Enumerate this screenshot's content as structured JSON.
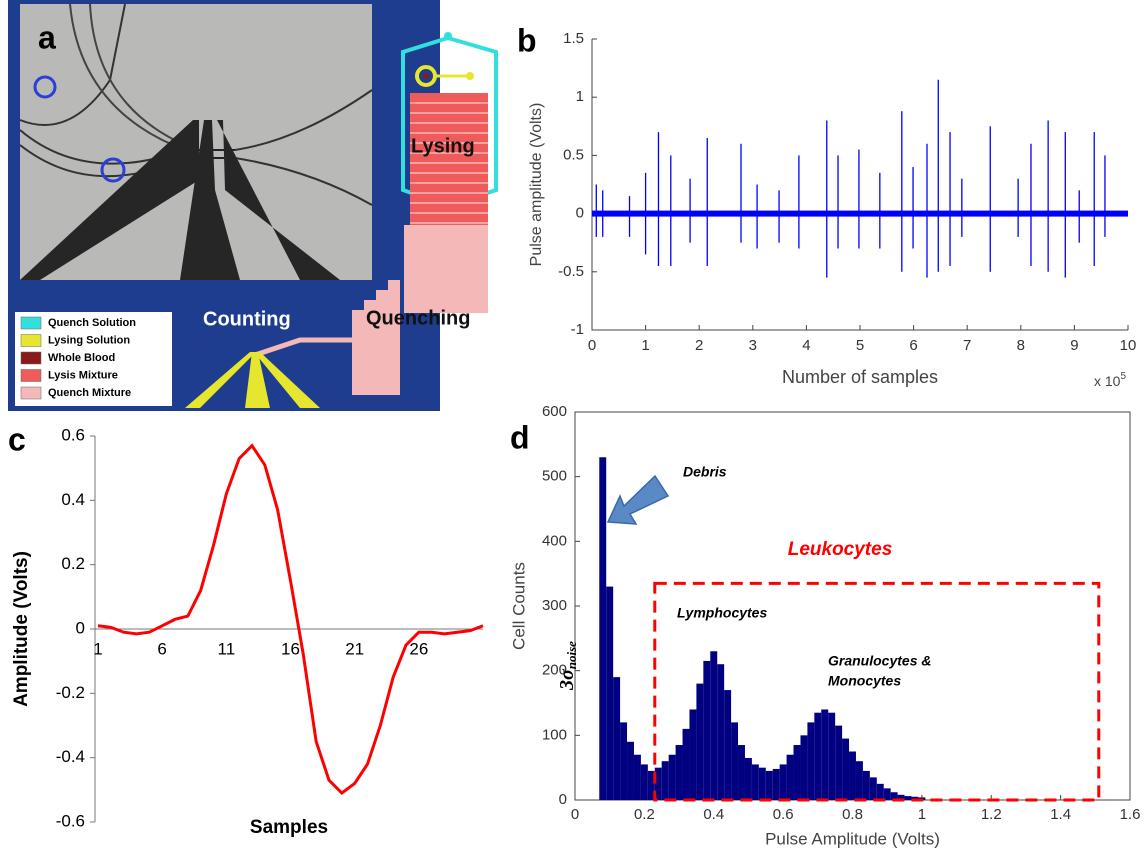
{
  "panel_a": {
    "label": "a",
    "labels": {
      "lysing": "Lysing",
      "quenching": "Quenching",
      "counting": "Counting"
    },
    "legend": [
      {
        "name": "Quench Solution",
        "color": "#33dede"
      },
      {
        "name": "Lysing Solution",
        "color": "#e6e62e"
      },
      {
        "name": "Whole Blood",
        "color": "#8b1a1a"
      },
      {
        "name": "Lysis Mixture",
        "color": "#ef5a5a"
      },
      {
        "name": "Quench Mixture",
        "color": "#f5b8b8"
      }
    ]
  },
  "chart_data": [
    {
      "type": "stem",
      "label": "b",
      "x_label": "Number of samples",
      "y_label": "Pulse amplitude (Volts)",
      "x_multiplier": {
        "base": "x 10",
        "exponent": "5"
      },
      "xlim": [
        0,
        10
      ],
      "xticks": [
        0,
        1,
        2,
        3,
        4,
        5,
        6,
        7,
        8,
        9,
        10
      ],
      "ylim": [
        -1,
        1.5
      ],
      "yticks": [
        -1,
        -0.5,
        0,
        0.5,
        1,
        1.5
      ],
      "x": [
        0.08,
        0.2,
        0.7,
        1.0,
        1.24,
        1.47,
        1.83,
        2.15,
        2.78,
        3.08,
        3.49,
        3.86,
        4.38,
        4.59,
        4.98,
        5.37,
        5.78,
        5.99,
        6.25,
        6.46,
        6.68,
        6.9,
        7.43,
        7.95,
        8.19,
        8.51,
        8.83,
        9.09,
        9.37,
        9.57
      ],
      "series": [
        {
          "color": "#0000ff",
          "values": [
            0.25,
            0.2,
            0.15,
            0.35,
            0.7,
            0.5,
            0.3,
            0.65,
            0.6,
            0.25,
            0.2,
            0.5,
            0.8,
            0.5,
            0.55,
            0.35,
            0.88,
            0.4,
            0.6,
            1.15,
            0.7,
            0.3,
            0.75,
            0.3,
            0.6,
            0.8,
            0.7,
            0.2,
            0.7,
            0.5
          ]
        },
        {
          "color": "#0000ff",
          "values": [
            -0.2,
            -0.2,
            -0.2,
            -0.35,
            -0.45,
            -0.45,
            -0.25,
            -0.45,
            -0.25,
            -0.3,
            -0.25,
            -0.3,
            -0.55,
            -0.3,
            -0.3,
            -0.3,
            -0.5,
            -0.3,
            -0.55,
            -0.5,
            -0.45,
            -0.2,
            -0.5,
            -0.2,
            -0.45,
            -0.5,
            -0.55,
            -0.25,
            -0.45,
            -0.2
          ]
        }
      ]
    },
    {
      "type": "line",
      "label": "c",
      "x_label": "Samples",
      "y_label": "Amplitude (Volts)",
      "color": "#ff0000",
      "ylim": [
        -0.6,
        0.6
      ],
      "yticks": [
        -0.6,
        -0.4,
        -0.2,
        0,
        0.2,
        0.4,
        0.6
      ],
      "categories": [
        1,
        null,
        null,
        null,
        null,
        6,
        null,
        null,
        null,
        null,
        11,
        null,
        null,
        null,
        null,
        16,
        null,
        null,
        null,
        null,
        21,
        null,
        null,
        null,
        null,
        26,
        null,
        null,
        null,
        null,
        null
      ],
      "values": [
        0.01,
        0.005,
        -0.01,
        -0.015,
        -0.01,
        0.01,
        0.03,
        0.04,
        0.12,
        0.26,
        0.42,
        0.53,
        0.57,
        0.51,
        0.37,
        0.15,
        -0.08,
        -0.35,
        -0.47,
        -0.51,
        -0.48,
        -0.42,
        -0.3,
        -0.15,
        -0.05,
        -0.01,
        -0.01,
        -0.015,
        -0.01,
        -0.005,
        0.01
      ]
    },
    {
      "type": "histogram",
      "label": "d",
      "x_label": "Pulse Amplitude (Volts)",
      "y_label": "Cell Counts",
      "color": "#000080",
      "xlim": [
        0,
        1.6
      ],
      "xticks": [
        0,
        0.2,
        0.4,
        0.6,
        0.8,
        1,
        1.2,
        1.4,
        1.6
      ],
      "ylim": [
        0,
        600
      ],
      "yticks": [
        0,
        100,
        200,
        300,
        400,
        500,
        600
      ],
      "bins": [
        0.07,
        0.09,
        0.11,
        0.13,
        0.15,
        0.17,
        0.19,
        0.21,
        0.23,
        0.25,
        0.27,
        0.29,
        0.31,
        0.33,
        0.35,
        0.37,
        0.39,
        0.41,
        0.43,
        0.45,
        0.47,
        0.49,
        0.51,
        0.53,
        0.55,
        0.57,
        0.59,
        0.61,
        0.63,
        0.65,
        0.67,
        0.69,
        0.71,
        0.73,
        0.75,
        0.77,
        0.79,
        0.81,
        0.83,
        0.85,
        0.87,
        0.89,
        0.91,
        0.93,
        0.95,
        0.97,
        0.99,
        1.01
      ],
      "values": [
        530,
        330,
        190,
        120,
        90,
        70,
        55,
        45,
        50,
        60,
        70,
        85,
        110,
        140,
        180,
        215,
        230,
        210,
        170,
        120,
        85,
        65,
        55,
        50,
        45,
        48,
        55,
        70,
        85,
        100,
        120,
        135,
        140,
        135,
        115,
        95,
        75,
        60,
        45,
        35,
        25,
        18,
        12,
        8,
        6,
        5,
        4
      ],
      "highlight": {
        "x": [
          0.23,
          1.51
        ],
        "y": [
          0,
          335
        ],
        "color": "#ff0000"
      },
      "annotations": {
        "debris": "Debris",
        "leukocytes": "Leukocytes",
        "lymphocytes": "Lymphocytes",
        "granulocytes": [
          "Granulocytes &",
          "Monocytes"
        ],
        "threshold": {
          "text": "3σ",
          "subscript": "noise"
        }
      }
    }
  ]
}
